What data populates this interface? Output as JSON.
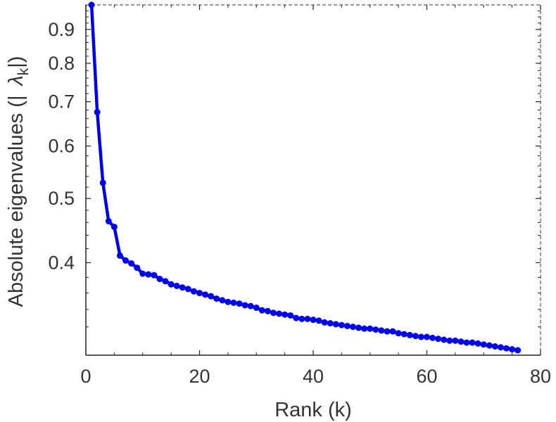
{
  "chart_data": {
    "type": "line",
    "xlabel": "Rank (k)",
    "ylabel_prefix": "Absolute eigenvalues (|",
    "ylabel_symbol": "λ",
    "ylabel_subscript": "k",
    "ylabel_suffix": "|)",
    "xlim": [
      0,
      80
    ],
    "ylim": [
      0.29,
      0.98
    ],
    "yscale": "log",
    "xticks": [
      0,
      20,
      40,
      60,
      80
    ],
    "xtick_labels": [
      "0",
      "20",
      "40",
      "60",
      "80"
    ],
    "yticks": [
      0.4,
      0.5,
      0.6,
      0.7,
      0.8,
      0.9
    ],
    "ytick_labels": [
      "0.4",
      "0.5",
      "0.6",
      "0.7",
      "0.8",
      "0.9"
    ],
    "grid": false,
    "line_color": "#0000ee",
    "series": [
      {
        "x": [
          1,
          2,
          3,
          4,
          5,
          6,
          7,
          8,
          9,
          10,
          11,
          12,
          13,
          14,
          15,
          16,
          17,
          18,
          19,
          20,
          21,
          22,
          23,
          24,
          25,
          26,
          27,
          28,
          29,
          30,
          31,
          32,
          33,
          34,
          35,
          36,
          37,
          38,
          39,
          40,
          41,
          42,
          43,
          44,
          45,
          46,
          47,
          48,
          49,
          50,
          51,
          52,
          53,
          54,
          55,
          56,
          57,
          58,
          59,
          60,
          61,
          62,
          63,
          64,
          65,
          66,
          67,
          68,
          69,
          70,
          71,
          72,
          73,
          74,
          75,
          76
        ],
        "y": [
          0.98,
          0.675,
          0.528,
          0.462,
          0.453,
          0.41,
          0.403,
          0.399,
          0.393,
          0.385,
          0.384,
          0.383,
          0.378,
          0.375,
          0.371,
          0.369,
          0.367,
          0.365,
          0.362,
          0.36,
          0.358,
          0.356,
          0.353,
          0.351,
          0.349,
          0.348,
          0.347,
          0.345,
          0.344,
          0.342,
          0.339,
          0.338,
          0.336,
          0.335,
          0.334,
          0.333,
          0.33,
          0.329,
          0.329,
          0.328,
          0.327,
          0.325,
          0.324,
          0.323,
          0.322,
          0.321,
          0.32,
          0.319,
          0.318,
          0.318,
          0.317,
          0.316,
          0.315,
          0.315,
          0.313,
          0.312,
          0.311,
          0.31,
          0.309,
          0.309,
          0.308,
          0.307,
          0.306,
          0.305,
          0.305,
          0.304,
          0.303,
          0.303,
          0.302,
          0.301,
          0.3,
          0.299,
          0.298,
          0.297,
          0.296,
          0.295
        ]
      }
    ]
  }
}
